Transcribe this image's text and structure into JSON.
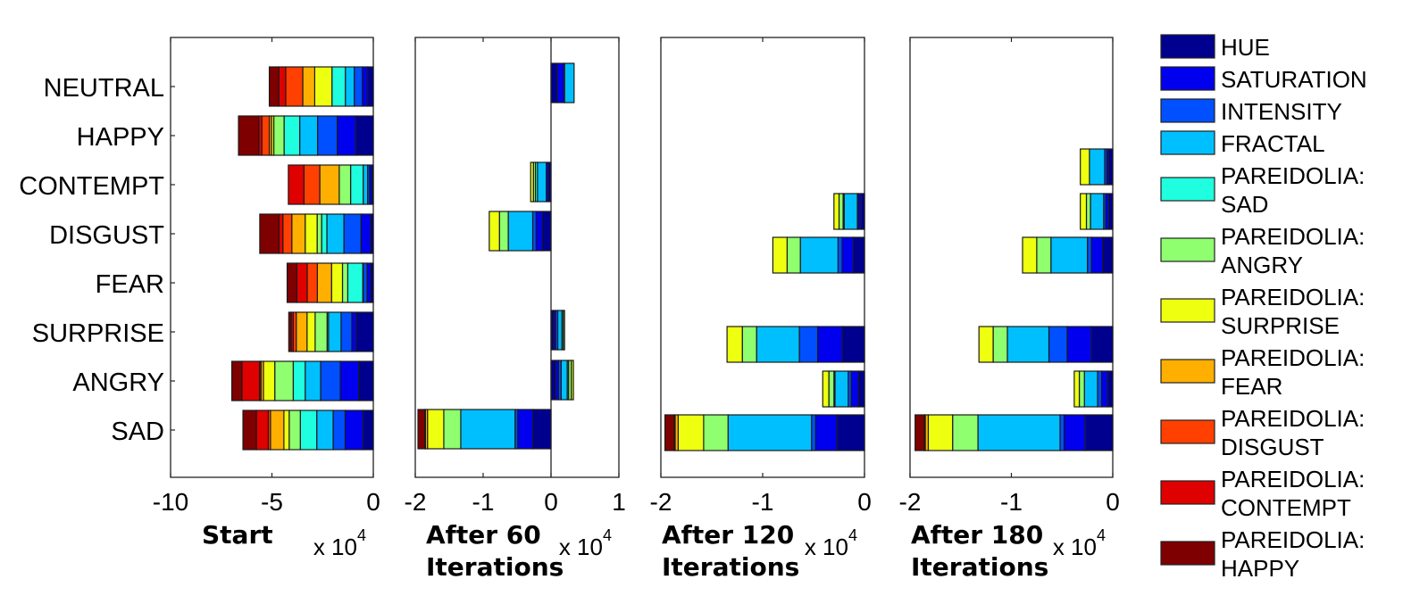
{
  "chart_data": {
    "type": "bar",
    "orientation": "horizontal",
    "stacked": true,
    "unit_multiplier": "x 10",
    "unit_exponent": "4",
    "categories": [
      "NEUTRAL",
      "HAPPY",
      "CONTEMPT",
      "DISGUST",
      "FEAR",
      "SURPRISE",
      "ANGRY",
      "SAD"
    ],
    "legend": {
      "position": "right",
      "entries": [
        {
          "label": [
            "HUE"
          ],
          "color": "#00008f"
        },
        {
          "label": [
            "SATURATION"
          ],
          "color": "#0000ee"
        },
        {
          "label": [
            "INTENSITY"
          ],
          "color": "#0050ff"
        },
        {
          "label": [
            "FRACTAL"
          ],
          "color": "#00bfff"
        },
        {
          "label": [
            "PAREIDOLIA:",
            "SAD"
          ],
          "color": "#1fffdf"
        },
        {
          "label": [
            "PAREIDOLIA:",
            "ANGRY"
          ],
          "color": "#8fff6f"
        },
        {
          "label": [
            "PAREIDOLIA:",
            "SURPRISE"
          ],
          "color": "#efff10"
        },
        {
          "label": [
            "PAREIDOLIA:",
            "FEAR"
          ],
          "color": "#ffaf00"
        },
        {
          "label": [
            "PAREIDOLIA:",
            "DISGUST"
          ],
          "color": "#ff4000"
        },
        {
          "label": [
            "PAREIDOLIA:",
            "CONTEMPT"
          ],
          "color": "#df0000"
        },
        {
          "label": [
            "PAREIDOLIA:",
            "HAPPY"
          ],
          "color": "#7f0000"
        }
      ]
    },
    "panels": [
      {
        "title": [
          "Start"
        ],
        "xlim": [
          -10,
          0
        ],
        "xticks": [
          -10,
          -5,
          0
        ],
        "xtick_labels": [
          "-10",
          "-5",
          "0"
        ],
        "series_values": {
          "NEUTRAL": [
            -0.28,
            -0.26,
            -0.4,
            -0.44,
            -0.66,
            0,
            -0.85,
            -0.59,
            -0.84,
            -0.34,
            -0.47
          ],
          "HAPPY": [
            -0.87,
            -0.91,
            -0.97,
            -0.88,
            -0.77,
            -0.51,
            -0.11,
            -0.11,
            -0.37,
            -0.15,
            -1.0
          ],
          "CONTEMPT": [
            -0.06,
            -0.12,
            -0.1,
            -0.22,
            -0.62,
            -0.56,
            0,
            -0.96,
            -0.78,
            -0.77,
            0
          ],
          "DISGUST": [
            -0.13,
            -0.48,
            -0.84,
            -0.84,
            -0.26,
            -0.22,
            -0.59,
            -0.66,
            -0.44,
            -0.19,
            -0.95
          ],
          "FEAR": [
            -0.13,
            -0.18,
            -0.19,
            -0.02,
            -0.74,
            -0.26,
            -0.54,
            -0.7,
            -0.5,
            -0.51,
            -0.48
          ],
          "SURPRISE": [
            -0.85,
            -0.21,
            -0.53,
            -0.62,
            -0.07,
            -0.59,
            -0.4,
            -0.53,
            -0.15,
            -0.1,
            -0.12
          ],
          "ANGRY": [
            -0.72,
            -0.91,
            -0.97,
            -0.76,
            -0.59,
            -0.91,
            -0.56,
            -0.12,
            -0.07,
            -0.87,
            -0.5
          ],
          "SAD": [
            -0.51,
            -0.88,
            -0.59,
            -0.81,
            -0.81,
            -0.55,
            -0.26,
            -0.66,
            -0.11,
            -0.59,
            -0.66
          ]
        }
      },
      {
        "title": [
          "After 60",
          "Iterations"
        ],
        "xlim": [
          -2,
          1
        ],
        "xticks": [
          -2,
          -1,
          0,
          1
        ],
        "xtick_labels": [
          "-2",
          "-1",
          "0",
          "1"
        ],
        "series_values": {
          "NEUTRAL": [
            0.09,
            0.1,
            0.01,
            0.14,
            0,
            0,
            0,
            0,
            0,
            0,
            0
          ],
          "CONTEMPT": [
            -0.04,
            -0.03,
            0,
            -0.13,
            -0.03,
            -0.03,
            -0.04,
            0,
            0,
            0,
            0
          ],
          "DISGUST": [
            -0.13,
            -0.09,
            -0.05,
            -0.36,
            0,
            -0.13,
            -0.15,
            0,
            0,
            0,
            0
          ],
          "SURPRISE": [
            0.04,
            0.03,
            0.03,
            0.06,
            0.02,
            0.02,
            0,
            0,
            0,
            0,
            0
          ],
          "ANGRY": [
            0.07,
            0.04,
            0.04,
            0.09,
            0.02,
            0.04,
            0.03,
            0,
            0,
            0,
            0
          ],
          "SAD": [
            -0.27,
            -0.22,
            -0.04,
            -0.8,
            0,
            -0.25,
            -0.24,
            -0.03,
            -0.01,
            0,
            -0.1
          ]
        }
      },
      {
        "title": [
          "After 120",
          "Iterations"
        ],
        "xlim": [
          -2,
          0
        ],
        "xticks": [
          -2,
          -1,
          0
        ],
        "xtick_labels": [
          "-2",
          "-1",
          "0"
        ],
        "series_values": {
          "CONTEMPT": [
            -0.03,
            -0.03,
            -0.01,
            -0.13,
            -0.01,
            -0.04,
            -0.05,
            0,
            0,
            0,
            0
          ],
          "DISGUST": [
            -0.11,
            -0.11,
            -0.04,
            -0.37,
            0,
            -0.13,
            -0.14,
            0,
            0,
            0,
            0
          ],
          "SURPRISE": [
            -0.22,
            -0.24,
            -0.18,
            -0.42,
            0,
            -0.14,
            -0.15,
            0,
            0,
            0,
            0
          ],
          "ANGRY": [
            -0.06,
            -0.07,
            -0.03,
            -0.13,
            -0.01,
            -0.05,
            -0.06,
            0,
            0,
            0,
            0
          ],
          "SAD": [
            -0.27,
            -0.21,
            -0.04,
            -0.82,
            0,
            -0.24,
            -0.25,
            -0.03,
            -0.01,
            0,
            -0.09
          ]
        }
      },
      {
        "title": [
          "After 180",
          "Iterations"
        ],
        "xlim": [
          -2,
          0
        ],
        "xticks": [
          -2,
          -1,
          0
        ],
        "xtick_labels": [
          "-2",
          "-1",
          "0"
        ],
        "series_values": {
          "HAPPY": [
            -0.04,
            -0.02,
            -0.02,
            -0.15,
            0,
            0,
            -0.09,
            0,
            0,
            0,
            0
          ],
          "CONTEMPT": [
            -0.04,
            -0.03,
            -0.02,
            -0.13,
            0,
            -0.04,
            -0.06,
            0,
            0,
            0,
            0
          ],
          "DISGUST": [
            -0.1,
            -0.11,
            -0.04,
            -0.36,
            0,
            -0.14,
            -0.14,
            0,
            0,
            0,
            0
          ],
          "SURPRISE": [
            -0.21,
            -0.24,
            -0.18,
            -0.41,
            0,
            -0.14,
            -0.14,
            0,
            0,
            0,
            0
          ],
          "ANGRY": [
            -0.05,
            -0.06,
            -0.04,
            -0.13,
            0,
            -0.05,
            -0.05,
            0,
            0,
            0,
            0
          ],
          "SAD": [
            -0.27,
            -0.21,
            -0.04,
            -0.81,
            0,
            -0.25,
            -0.24,
            -0.03,
            -0.01,
            0,
            -0.09
          ]
        }
      }
    ]
  }
}
